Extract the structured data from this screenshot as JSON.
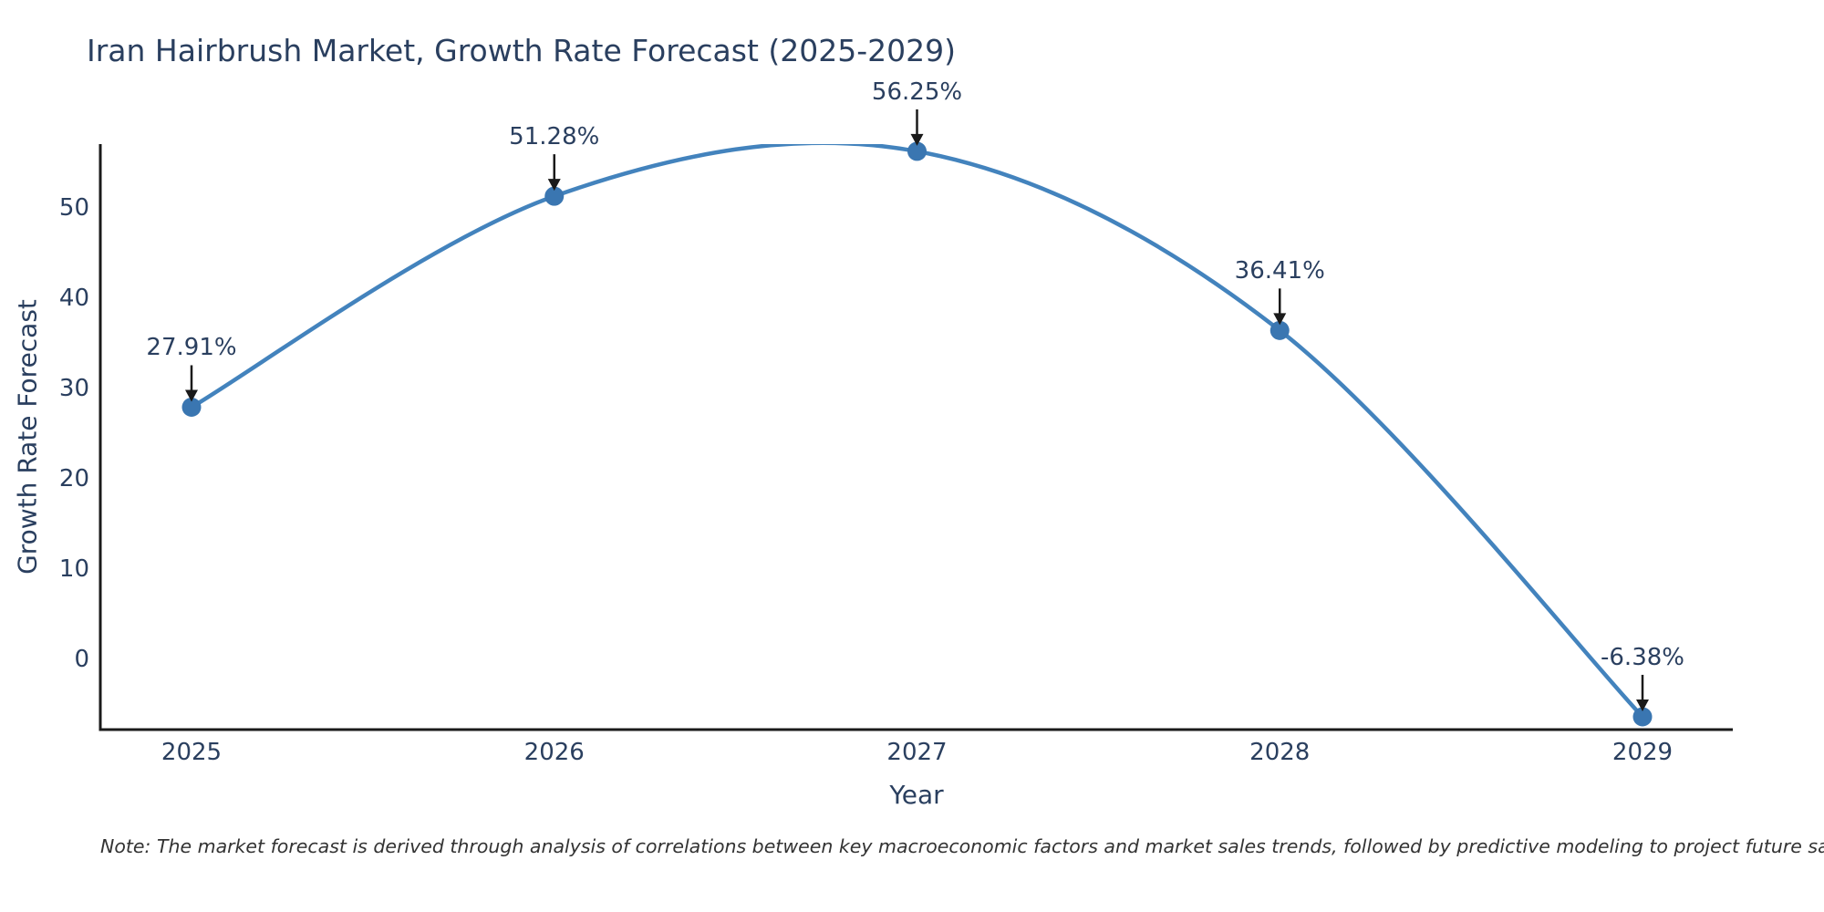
{
  "title": "Iran Hairbrush Market, Growth Rate Forecast (2025-2029)",
  "note": "Note: The market forecast is derived through analysis of correlations between key macroeconomic factors and market sales trends, followed by predictive modeling to project future sales",
  "colors": {
    "title_text": "#2a3f5f",
    "axis_text": "#2a3f5f",
    "axis_line": "#1a1a1a",
    "line": "#4383bd",
    "marker": "#3a76b1",
    "annotation_arrow": "#1a1a1a",
    "note_text": "#333333",
    "background": "#ffffff"
  },
  "chart_data": {
    "type": "line",
    "title": "Iran Hairbrush Market, Growth Rate Forecast (2025-2029)",
    "xlabel": "Year",
    "ylabel": "Growth Rate Forecast",
    "x": [
      2025,
      2026,
      2027,
      2028,
      2029
    ],
    "values": [
      27.91,
      51.28,
      56.25,
      36.41,
      -6.38
    ],
    "point_labels": [
      "27.91%",
      "51.28%",
      "56.25%",
      "36.41%",
      "-6.38%"
    ],
    "x_tick_labels": [
      "2025",
      "2026",
      "2027",
      "2028",
      "2029"
    ],
    "y_ticks": [
      0,
      10,
      20,
      30,
      40,
      50
    ],
    "ylim": [
      -7.8,
      57.05
    ],
    "xlim_padding_note": "x axis extends beyond first/last year",
    "line_shape": "spline",
    "grid": false,
    "legend": "none",
    "markers": true,
    "annotations_arrow": "down"
  }
}
